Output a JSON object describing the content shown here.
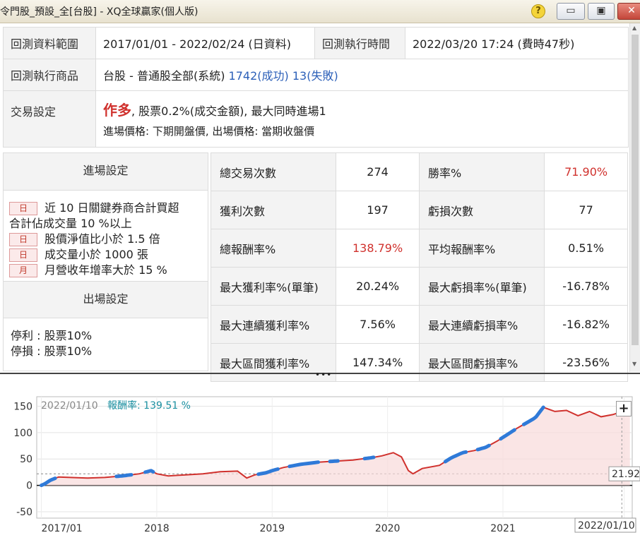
{
  "window": {
    "title": "令門股_預設_全[台股] - XQ全球贏家(個人版)",
    "help": "?",
    "minimize": "▭",
    "maximize": "▣",
    "close": "✕"
  },
  "info": {
    "range_label": "回測資料範圍",
    "range_value": "2017/01/01 - 2022/02/24 (日資料)",
    "exec_time_label": "回測執行時間",
    "exec_time_value": "2022/03/20 17:24 (費時47秒)",
    "product_label": "回測執行商品",
    "product_value": "台股 - 普通股全部(系統)",
    "success": "1742(成功)",
    "fail": "13(失敗)",
    "trade_label": "交易設定",
    "trade_direction": "作多",
    "trade_detail": ", 股票0.2%(成交金額), 最大同時進場1",
    "trade_price": "進場價格: 下期開盤價, 出場價格: 當期收盤價"
  },
  "entry": {
    "header": "進場設定",
    "conditions": [
      {
        "badge": "日",
        "text": "近 10 日關鍵券商合計買超"
      },
      {
        "badge": "",
        "text": "合計佔成交量 10 %以上"
      },
      {
        "badge": "日",
        "text": "股價淨值比小於 1.5 倍"
      },
      {
        "badge": "日",
        "text": "成交量小於 1000 張"
      },
      {
        "badge": "月",
        "text": "月營收年增率大於 15 %"
      }
    ]
  },
  "exit": {
    "header": "出場設定",
    "take_profit": "停利 : 股票10%",
    "stop_loss": "停損 : 股票10%"
  },
  "stats": [
    {
      "l1": "總交易次數",
      "v1": "274",
      "l2": "勝率%",
      "v2": "71.90%",
      "v2red": true
    },
    {
      "l1": "獲利次數",
      "v1": "197",
      "l2": "虧損次數",
      "v2": "77"
    },
    {
      "l1": "總報酬率%",
      "v1": "138.79%",
      "v1red": true,
      "l2": "平均報酬率%",
      "v2": "0.51%"
    },
    {
      "l1": "最大獲利率%(單筆)",
      "v1": "20.24%",
      "l2": "最大虧損率%(單筆)",
      "v2": "-16.78%"
    },
    {
      "l1": "最大連續獲利率%",
      "v1": "7.56%",
      "l2": "最大連續虧損率%",
      "v2": "-16.82%"
    },
    {
      "l1": "最大區間獲利率%",
      "v1": "147.34%",
      "l2": "最大區間虧損率%",
      "v2": "-23.56%"
    }
  ],
  "splitter": "•••",
  "chart_data": {
    "type": "line",
    "header_date": "2022/01/10",
    "header_label": "報酬率: 139.51 %",
    "plus": "+",
    "y_ticks": [
      150,
      100,
      50,
      0,
      -50
    ],
    "x_ticks": [
      "2017/01",
      "2018",
      "2019",
      "2020",
      "2021",
      "2022"
    ],
    "ylim": [
      -62,
      168
    ],
    "cursor_date": "2022/01/10",
    "last_value_label": "21.92",
    "series": [
      {
        "color": "#d0312d",
        "x": [
          2017.0,
          2017.03,
          2017.08,
          2017.15,
          2017.25,
          2017.4,
          2017.55,
          2017.7,
          2017.85,
          2017.95,
          2018.0,
          2018.1,
          2018.25,
          2018.4,
          2018.55,
          2018.7,
          2018.78,
          2018.85,
          2018.95,
          2019.0,
          2019.1,
          2019.25,
          2019.4,
          2019.55,
          2019.7,
          2019.85,
          2019.95,
          2020.05,
          2020.12,
          2020.18,
          2020.22,
          2020.3,
          2020.45,
          2020.55,
          2020.65,
          2020.75,
          2020.85,
          2020.95,
          2021.05,
          2021.12,
          2021.2,
          2021.28,
          2021.35,
          2021.45,
          2021.55,
          2021.65,
          2021.75,
          2021.85,
          2021.95,
          2022.03,
          2022.1
        ],
        "values": [
          0,
          3,
          10,
          16,
          15,
          14,
          15,
          18,
          22,
          28,
          22,
          18,
          20,
          22,
          26,
          27,
          14,
          20,
          24,
          28,
          34,
          40,
          44,
          46,
          48,
          52,
          56,
          62,
          54,
          28,
          22,
          32,
          38,
          52,
          62,
          66,
          72,
          84,
          98,
          108,
          118,
          128,
          148,
          140,
          142,
          132,
          140,
          130,
          134,
          139.5,
          140
        ]
      }
    ],
    "highlights": [
      [
        2017.0,
        2017.12
      ],
      [
        2017.65,
        2017.78
      ],
      [
        2017.9,
        2017.97
      ],
      [
        2018.88,
        2019.05
      ],
      [
        2019.15,
        2019.4
      ],
      [
        2019.5,
        2019.57
      ],
      [
        2019.8,
        2019.88
      ],
      [
        2020.5,
        2020.68
      ],
      [
        2020.78,
        2020.88
      ],
      [
        2020.98,
        2021.1
      ],
      [
        2021.18,
        2021.35
      ]
    ]
  }
}
